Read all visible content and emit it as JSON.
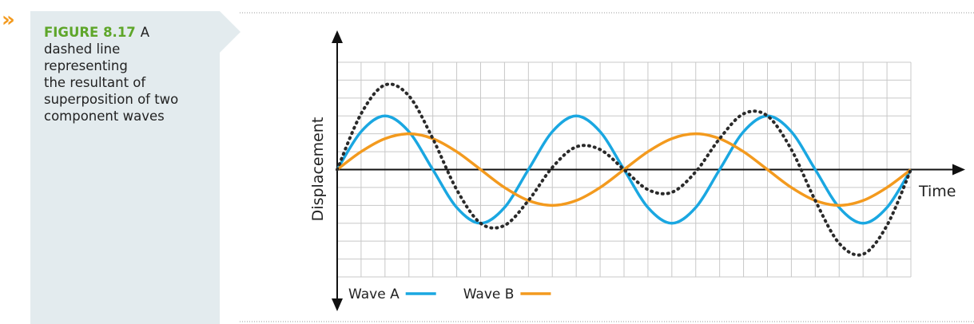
{
  "sidebar": {
    "marker": "»",
    "figure_label": "FIGURE 8.17",
    "caption_lines": [
      "A",
      "dashed line",
      "representing",
      "the resultant of",
      "superposition of two",
      "component waves"
    ]
  },
  "chart_data": {
    "type": "line",
    "x_label": "Time",
    "y_label": "Displacement",
    "x": [
      0,
      1,
      2,
      3,
      4,
      5,
      6,
      7,
      8,
      9,
      10,
      11,
      12,
      13,
      14,
      15,
      16,
      17,
      18,
      19,
      20,
      21,
      22,
      23,
      24
    ],
    "xlim": [
      0,
      24
    ],
    "ylim": [
      -6,
      6
    ],
    "xticks": [
      0,
      1,
      2,
      3,
      4,
      5,
      6,
      7,
      8,
      9,
      10,
      11,
      12,
      13,
      14,
      15,
      16,
      17,
      18,
      19,
      20,
      21,
      22,
      23,
      24
    ],
    "yticks": [
      -6,
      -5,
      -4,
      -3,
      -2,
      -1,
      0,
      1,
      2,
      3,
      4,
      5,
      6
    ],
    "tick_labels": false,
    "grid": true,
    "series": [
      {
        "name": "Wave A",
        "color": "#1aa7e1",
        "values": [
          0,
          2.12,
          3,
          2.12,
          0,
          -2.12,
          -3,
          -2.12,
          0,
          2.12,
          3,
          2.12,
          0,
          -2.12,
          -3,
          -2.12,
          0,
          2.12,
          3,
          2.12,
          0,
          -2.12,
          -3,
          -2.12,
          0
        ]
      },
      {
        "name": "Wave B",
        "color": "#f39a1e",
        "values": [
          0,
          1,
          1.73,
          2,
          1.73,
          1,
          0,
          -1,
          -1.73,
          -2,
          -1.73,
          -1,
          0,
          1,
          1.73,
          2,
          1.73,
          1,
          0,
          -1,
          -1.73,
          -2,
          -1.73,
          -1,
          0
        ]
      },
      {
        "color": "#2a2a2a",
        "dashed": true,
        "values": [
          0,
          3.12,
          4.73,
          4.12,
          1.73,
          -1.12,
          -3,
          -3.12,
          -1.73,
          0.12,
          1.27,
          1.12,
          0,
          -1.12,
          -1.27,
          -0.12,
          1.73,
          3.12,
          3,
          1.12,
          -1.73,
          -4.12,
          -4.73,
          -3.12,
          0
        ]
      }
    ]
  }
}
